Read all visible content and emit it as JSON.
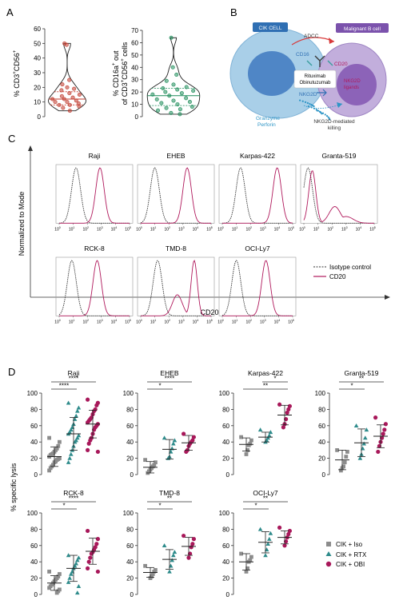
{
  "colors": {
    "cik_iso": "#8c8c8c",
    "cik_rtx": "#2e8b8b",
    "cik_obi": "#a8185a",
    "cd20": "#b0195c",
    "isotype": "#333333",
    "violin_a1": "#c0392b",
    "violin_a2": "#1e8c5a",
    "cik_cell": "#a9cfe8",
    "malignant": "#b9a3d6"
  },
  "panel_labels": {
    "a": "A",
    "b": "B",
    "c": "C",
    "d": "D"
  },
  "panel_a": {
    "plot1": {
      "ylabel_main": "% CD3",
      "ylabel_sup1": "+",
      "ylabel_mid": "CD56",
      "ylabel_sup2": "+",
      "ticks": [
        "0",
        "10",
        "20",
        "30",
        "40",
        "50",
        "60"
      ],
      "values": [
        50,
        49,
        25,
        22,
        20,
        19,
        18,
        16,
        15,
        14,
        13,
        12,
        12,
        11,
        10,
        10,
        9,
        8,
        8,
        7,
        6,
        4
      ],
      "median": 12,
      "q1": 8,
      "q3": 17
    },
    "plot2": {
      "ylabel_line1_a": "% CD16a",
      "ylabel_line1_sup": "+",
      "ylabel_line1_b": " out",
      "ylabel_line2_a": "of CD3",
      "ylabel_line2_sup1": "+",
      "ylabel_line2_b": "CD56",
      "ylabel_line2_sup2": "+",
      "ylabel_line2_c": " cells",
      "ticks": [
        "0",
        "10",
        "20",
        "30",
        "40",
        "50",
        "60",
        "70"
      ],
      "values": [
        64,
        40,
        34,
        29,
        26,
        24,
        23,
        22,
        21,
        20,
        19,
        18,
        17,
        15,
        14,
        13,
        12,
        11,
        10,
        8,
        7,
        6,
        5,
        3,
        2
      ],
      "median": 17,
      "q1": 9,
      "q3": 23
    }
  },
  "panel_b": {
    "cik_cell": "CIK CELL",
    "malignant": "Malignant B cell",
    "adcc": "ADCC",
    "cd16": "CD16",
    "cd20": "CD20",
    "rituximab": "Rituximab",
    "obinutuzumab": "Obinutuzumab",
    "nkg2d": "NKG2D",
    "nkg2d_ligands_1": "NKG2D",
    "nkg2d_ligands_2": "ligands",
    "granzyme": "Granzyme",
    "perforin": "Perforin",
    "nkg2d_killing_1": "NKG2D-mediated",
    "nkg2d_killing_2": "killing"
  },
  "panel_c": {
    "ylabel": "Normalized to Mode",
    "xlabel": "CD20",
    "tick_labels": [
      "10",
      "10",
      "10",
      "10",
      "10",
      "10"
    ],
    "tick_exps": [
      "0",
      "1",
      "2",
      "3",
      "4",
      "5"
    ],
    "legend_isotype": "Isotype control",
    "legend_cd20": "CD20",
    "plots": [
      {
        "name": "Raji",
        "iso_peak": 1.2,
        "cd20_peak": 2.9,
        "cd20_shape": "single"
      },
      {
        "name": "EHEB",
        "iso_peak": 1.0,
        "cd20_peak": 3.3,
        "cd20_shape": "single"
      },
      {
        "name": "Karpas-422",
        "iso_peak": 1.3,
        "cd20_peak": 3.9,
        "cd20_shape": "single"
      },
      {
        "name": "Granta-519",
        "iso_peak": 0.3,
        "cd20_peak": 0.6,
        "cd20_shape": "granta"
      },
      {
        "name": "RCK-8",
        "iso_peak": 0.9,
        "cd20_peak": 2.7,
        "cd20_shape": "single"
      },
      {
        "name": "TMD-8",
        "iso_peak": 1.2,
        "cd20_peak": 3.8,
        "cd20_shape": "bimodal"
      },
      {
        "name": "OCI-Ly7",
        "iso_peak": 1.0,
        "cd20_peak": 3.1,
        "cd20_shape": "single"
      }
    ]
  },
  "panel_d": {
    "ylabel": "% specific lysis",
    "ticks": [
      "0",
      "20",
      "40",
      "60",
      "80",
      "100"
    ],
    "legend": [
      "CIK + Iso",
      "CIK + RTX",
      "CIK + OBI"
    ],
    "plots": [
      {
        "name": "Raji",
        "sig": [
          {
            "from": 0,
            "to": 2,
            "label": "****"
          },
          {
            "from": 0,
            "to": 1,
            "label": "****"
          }
        ],
        "groups": [
          {
            "mean": 22,
            "sd": 12,
            "values": [
              45,
              40,
              35,
              32,
              30,
              28,
              26,
              25,
              24,
              22,
              20,
              19,
              18,
              16,
              15,
              12,
              10,
              8,
              5
            ]
          },
          {
            "mean": 50,
            "sd": 20,
            "values": [
              88,
              82,
              78,
              72,
              68,
              62,
              58,
              55,
              52,
              50,
              48,
              45,
              42,
              40,
              35,
              30,
              25,
              20,
              15
            ]
          },
          {
            "mean": 62,
            "sd": 17,
            "values": [
              92,
              88,
              85,
              80,
              78,
              74,
              70,
              68,
              66,
              64,
              62,
              60,
              58,
              55,
              50,
              45,
              42,
              38,
              30,
              28
            ]
          }
        ]
      },
      {
        "name": "EHEB",
        "sig": [
          {
            "from": 0,
            "to": 2,
            "label": "****"
          },
          {
            "from": 0,
            "to": 1,
            "label": "*"
          }
        ],
        "groups": [
          {
            "mean": 9,
            "sd": 7,
            "values": [
              18,
              15,
              12,
              10,
              8,
              6,
              4,
              2
            ]
          },
          {
            "mean": 31,
            "sd": 12,
            "values": [
              45,
              42,
              38,
              32,
              28,
              22,
              20
            ]
          },
          {
            "mean": 39,
            "sd": 9,
            "values": [
              50,
              46,
              42,
              40,
              38,
              35,
              30,
              28
            ]
          }
        ]
      },
      {
        "name": "Karpas-422",
        "sig": [
          {
            "from": 1,
            "to": 2,
            "label": "*"
          },
          {
            "from": 0,
            "to": 2,
            "label": "**"
          }
        ],
        "groups": [
          {
            "mean": 37,
            "sd": 8,
            "values": [
              46,
              42,
              38,
              36,
              30,
              25
            ]
          },
          {
            "mean": 46,
            "sd": 6,
            "values": [
              55,
              52,
              48,
              45,
              42,
              40
            ]
          },
          {
            "mean": 73,
            "sd": 12,
            "values": [
              86,
              84,
              80,
              76,
              68,
              62,
              58
            ]
          }
        ]
      },
      {
        "name": "Granta-519",
        "sig": [
          {
            "from": 0,
            "to": 2,
            "label": "**"
          },
          {
            "from": 0,
            "to": 1,
            "label": "*"
          }
        ],
        "groups": [
          {
            "mean": 18,
            "sd": 12,
            "values": [
              30,
              28,
              22,
              15,
              10,
              8,
              5
            ]
          },
          {
            "mean": 39,
            "sd": 17,
            "values": [
              60,
              55,
              45,
              38,
              32,
              25,
              20
            ]
          },
          {
            "mean": 47,
            "sd": 14,
            "values": [
              70,
              62,
              55,
              50,
              45,
              40,
              35,
              28
            ]
          }
        ]
      },
      {
        "name": "RCK-8",
        "sig": [
          {
            "from": 0,
            "to": 2,
            "label": "****"
          },
          {
            "from": 0,
            "to": 1,
            "label": "*"
          }
        ],
        "groups": [
          {
            "mean": 14,
            "sd": 9,
            "values": [
              28,
              25,
              22,
              20,
              18,
              16,
              14,
              12,
              10,
              8,
              6,
              4,
              2
            ]
          },
          {
            "mean": 32,
            "sd": 16,
            "values": [
              48,
              45,
              42,
              38,
              35,
              32,
              28,
              25,
              20,
              15,
              10,
              2
            ]
          },
          {
            "mean": 53,
            "sd": 16,
            "values": [
              78,
              68,
              62,
              58,
              55,
              52,
              50,
              45,
              40,
              32,
              28
            ]
          }
        ]
      },
      {
        "name": "TMD-8",
        "sig": [
          {
            "from": 0,
            "to": 2,
            "label": "**"
          },
          {
            "from": 0,
            "to": 1,
            "label": "*"
          }
        ],
        "groups": [
          {
            "mean": 27,
            "sd": 6,
            "values": [
              35,
              30,
              28,
              25,
              22,
              20
            ]
          },
          {
            "mean": 43,
            "sd": 12,
            "values": [
              60,
              52,
              48,
              42,
              35,
              28
            ]
          },
          {
            "mean": 59,
            "sd": 11,
            "values": [
              72,
              68,
              62,
              58,
              50,
              45
            ]
          }
        ]
      },
      {
        "name": "OCI-Ly7",
        "sig": [
          {
            "from": 0,
            "to": 2,
            "label": "**"
          },
          {
            "from": 0,
            "to": 1,
            "label": "*"
          }
        ],
        "groups": [
          {
            "mean": 40,
            "sd": 10,
            "values": [
              50,
              46,
              42,
              40,
              32,
              28
            ]
          },
          {
            "mean": 64,
            "sd": 13,
            "values": [
              80,
              75,
              68,
              62,
              55,
              48
            ]
          },
          {
            "mean": 70,
            "sd": 8,
            "values": [
              82,
              78,
              74,
              70,
              65,
              60
            ]
          }
        ]
      }
    ]
  }
}
